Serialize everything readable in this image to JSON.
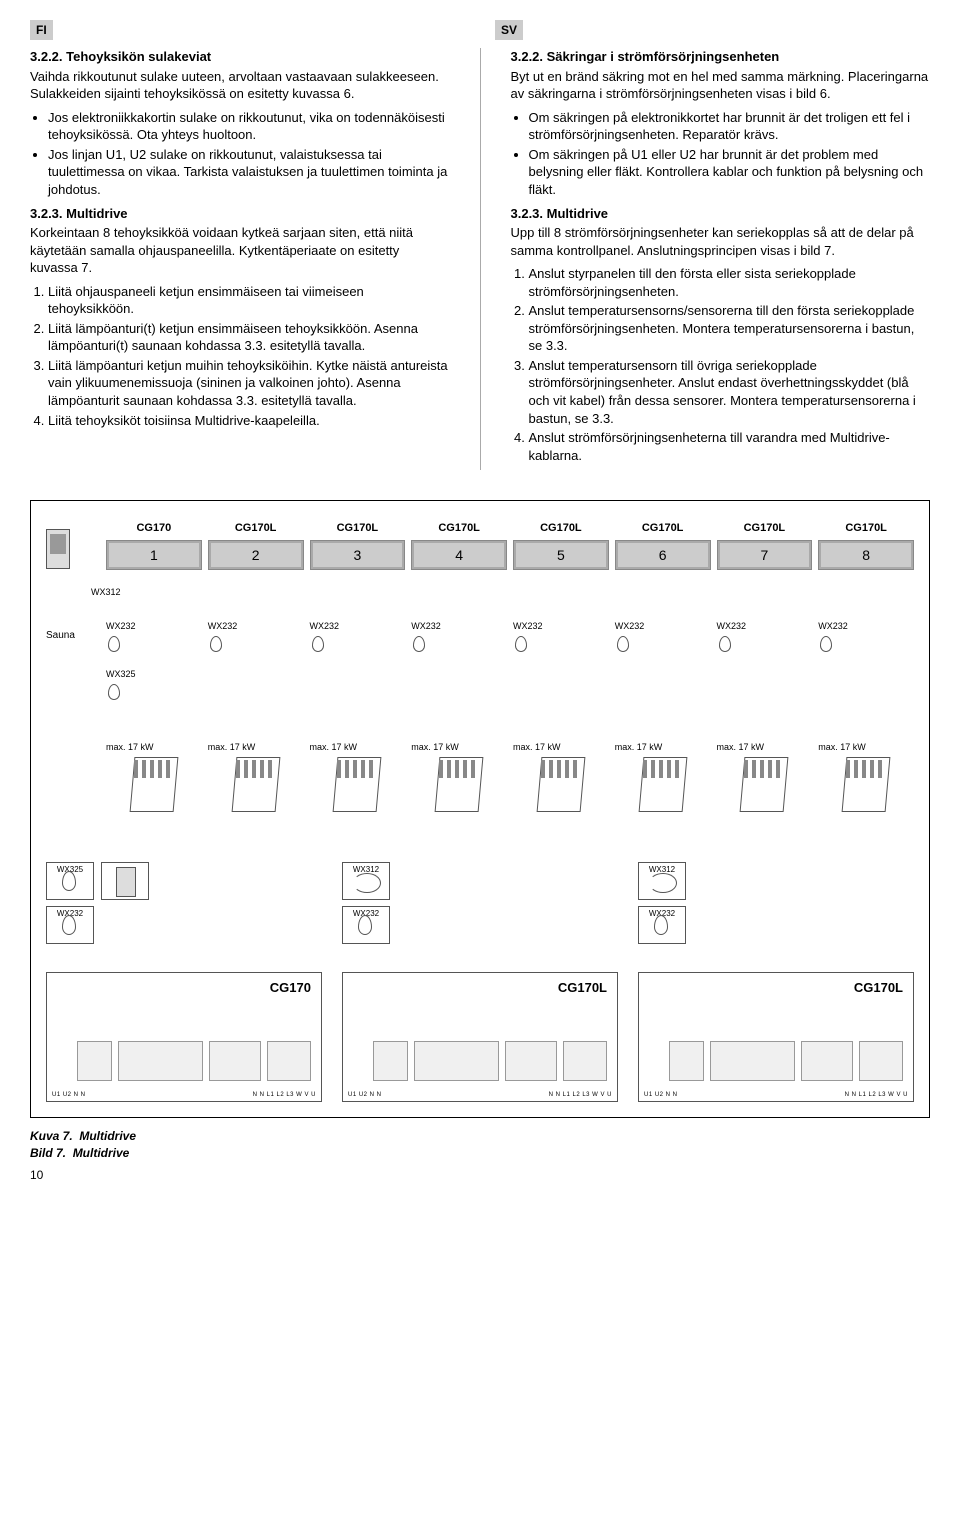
{
  "header": {
    "left_tag": "FI",
    "right_tag": "SV"
  },
  "left": {
    "h1": "3.2.2. Tehoyksikön sulakeviat",
    "p1": "Vaihda rikkoutunut sulake uuteen, arvoltaan vastaavaan sulakkeeseen. Sulakkeiden sijainti tehoyksikössä on esitetty kuvassa 6.",
    "bullets": [
      "Jos elektroniikkakortin sulake on rikkoutunut, vika on todennäköisesti tehoyksikössä. Ota yhteys huoltoon.",
      "Jos linjan U1, U2 sulake on rikkoutunut, valaistuksessa tai tuulettimessa on vikaa. Tarkista valaistuksen ja tuulettimen toiminta ja johdotus."
    ],
    "h2": "3.2.3. Multidrive",
    "p2": "Korkeintaan 8 tehoyksikköä voidaan kytkeä sarjaan siten, että niitä käytetään samalla ohjauspaneelilla. Kytkentäperiaate on esitetty kuvassa 7.",
    "steps": [
      "Liitä ohjauspaneeli ketjun ensimmäiseen tai viimeiseen tehoyksikköön.",
      "Liitä lämpöanturi(t) ketjun ensimmäiseen tehoyksikköön. Asenna lämpöanturi(t) saunaan kohdassa 3.3. esitetyllä tavalla.",
      "Liitä lämpöanturi ketjun muihin tehoyksiköihin. Kytke näistä antureista vain ylikuumenemissuoja (sininen ja valkoinen johto). Asenna lämpöanturit saunaan kohdassa 3.3. esitetyllä tavalla.",
      "Liitä tehoyksiköt toisiinsa Multidrive-kaapeleilla."
    ]
  },
  "right": {
    "h1": "3.2.2. Säkringar i strömförsörjningsenheten",
    "p1": "Byt ut en bränd säkring mot en hel med samma märkning. Placeringarna av säkringarna i strömförsörjningsenheten visas i bild 6.",
    "bullets": [
      "Om säkringen på elektronikkortet har brunnit är det troligen ett fel i strömförsörjningsenheten. Reparatör krävs.",
      "Om säkringen på U1 eller U2 har brunnit är det problem med belysning eller fläkt. Kontrollera kablar och funktion på belysning och fläkt."
    ],
    "h2": "3.2.3. Multidrive",
    "p2": "Upp till 8 strömförsörjningsenheter kan seriekopplas så att de delar på samma kontrollpanel. Anslutningsprincipen visas i bild 7.",
    "steps": [
      "Anslut styrpanelen till den första eller sista seriekopplade strömförsörjningsenheten.",
      "Anslut temperatursensorns/sensorerna till den första seriekopplade strömförsörjningsenheten. Montera temperatursensorerna i bastun, se 3.3.",
      "Anslut temperatursensorn till övriga seriekopplade strömförsörjningsenheter. Anslut endast överhettningsskyddet (blå och vit kabel) från dessa sensorer. Montera temperatursensorerna i bastun, se 3.3.",
      "Anslut strömförsörjningsenheterna till varandra med Multidrive-kablarna."
    ]
  },
  "diagram": {
    "units": [
      {
        "label": "CG170",
        "num": "1"
      },
      {
        "label": "CG170L",
        "num": "2"
      },
      {
        "label": "CG170L",
        "num": "3"
      },
      {
        "label": "CG170L",
        "num": "4"
      },
      {
        "label": "CG170L",
        "num": "5"
      },
      {
        "label": "CG170L",
        "num": "6"
      },
      {
        "label": "CG170L",
        "num": "7"
      },
      {
        "label": "CG170L",
        "num": "8"
      }
    ],
    "side_labels": [
      "WX312",
      "WX232",
      "WX325"
    ],
    "sauna": "Sauna",
    "sensor_label": "WX232",
    "heater_kw": "max. 17 kW",
    "boards": [
      {
        "title": "CG170",
        "side": [
          "WX325",
          "WX232"
        ],
        "side_types": [
          "sensor",
          "sensor"
        ],
        "extra_panel": true
      },
      {
        "title": "CG170L",
        "side": [
          "WX312",
          "WX232"
        ],
        "side_types": [
          "cable",
          "sensor"
        ],
        "extra_panel": false
      },
      {
        "title": "CG170L",
        "side": [
          "WX312",
          "WX232"
        ],
        "side_types": [
          "cable",
          "sensor"
        ],
        "extra_panel": false
      }
    ],
    "terminals_left": "U1 U2 N  N",
    "terminals_right": "N  N  L1 L2 L3 W  V  U"
  },
  "caption": {
    "line1a": "Kuva 7.",
    "line1b": "Multidrive",
    "line2a": "Bild 7.",
    "line2b": "Multidrive"
  },
  "page": "10",
  "colors": {
    "tag_bg": "#cccccc",
    "unit_bg": "#cccccc"
  }
}
